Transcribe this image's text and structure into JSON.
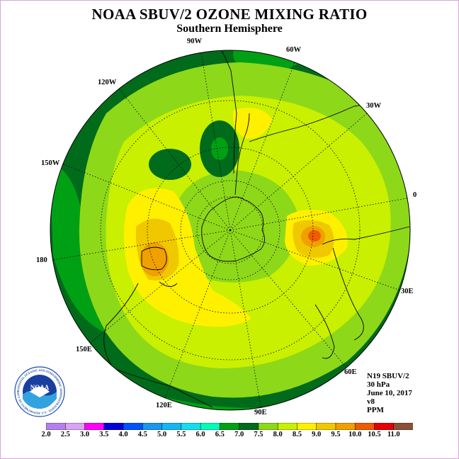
{
  "title": "NOAA SBUV/2 OZONE MIXING RATIO",
  "subtitle": "Southern Hemisphere",
  "info": {
    "satellite": "N19 SBUV/2",
    "level": "30 hPa",
    "date": "June 10, 2017",
    "version": "v8",
    "units": "PPM"
  },
  "logo": {
    "text": "NOAA",
    "ring_text": "NATIONAL OCEANIC AND ATMOSPHERIC ADMINISTRATION · U.S. DEPARTMENT OF COMMERCE"
  },
  "longitude_labels": [
    "90W",
    "60W",
    "30W",
    "0",
    "30E",
    "60E",
    "90E",
    "120E",
    "150E",
    "180",
    "150W",
    "120W"
  ],
  "colorbar": {
    "ticks": [
      "2.0",
      "2.5",
      "3.0",
      "3.5",
      "4.0",
      "4.5",
      "5.0",
      "5.5",
      "6.0",
      "6.5",
      "7.0",
      "7.5",
      "8.0",
      "8.5",
      "9.0",
      "9.5",
      "10.0",
      "10.5",
      "11.0"
    ],
    "colors": [
      "#b37ff0",
      "#d9a3f5",
      "#ff00ff",
      "#0000dd",
      "#0050ff",
      "#1a96f0",
      "#14b6f5",
      "#14dcf0",
      "#00ffb4",
      "#00a014",
      "#006b1a",
      "#8ed81a",
      "#c8f000",
      "#fff000",
      "#f0c800",
      "#f0a000",
      "#f05a00",
      "#e60000",
      "#8b5036"
    ]
  },
  "colors": {
    "level_6_5": "#00a014",
    "level_7_0": "#006b1a",
    "level_7_5": "#8ed81a",
    "level_8_0": "#c8f000",
    "level_8_5": "#fff000",
    "level_9_0": "#f0c800",
    "level_9_5": "#f0a000",
    "level_10_0": "#f05a00",
    "frame": "#d9a6d9"
  }
}
